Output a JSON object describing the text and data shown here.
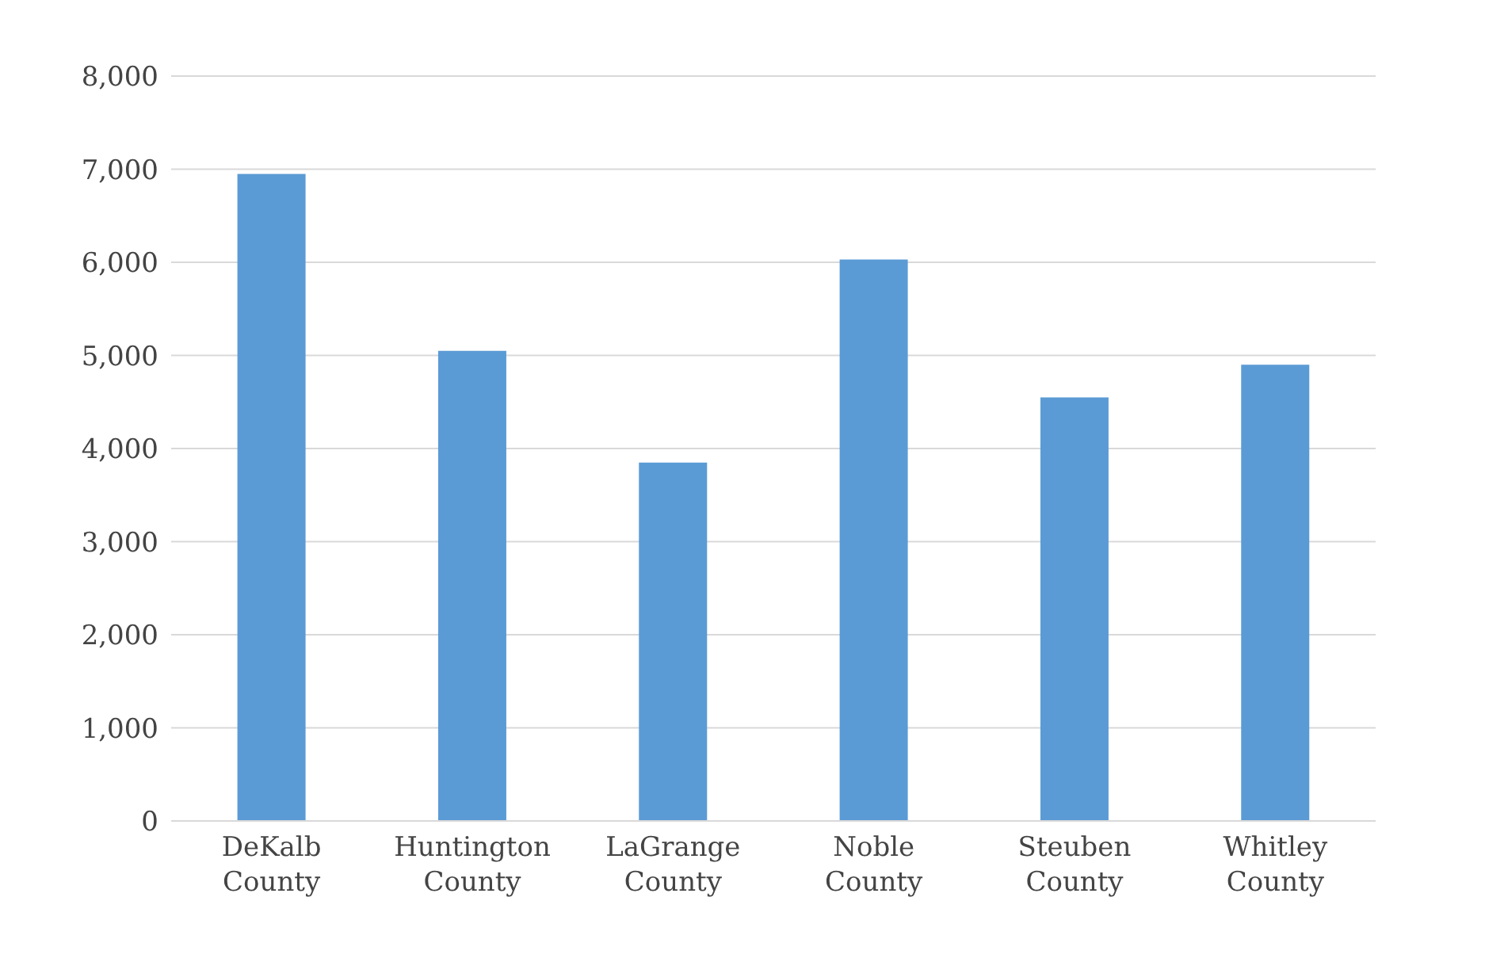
{
  "chart_data": {
    "type": "bar",
    "categories": [
      "DeKalb County",
      "Huntington County",
      "LaGrange County",
      "Noble County",
      "Steuben County",
      "Whitley County"
    ],
    "values": [
      6950,
      5050,
      3850,
      6030,
      4550,
      4900
    ],
    "color": "#5b9bd5",
    "ylim": [
      0,
      8000
    ],
    "yticks": [
      {
        "value": 0,
        "label": "0"
      },
      {
        "value": 1000,
        "label": "1,000"
      },
      {
        "value": 2000,
        "label": "2,000"
      },
      {
        "value": 3000,
        "label": "3,000"
      },
      {
        "value": 4000,
        "label": "4,000"
      },
      {
        "value": 5000,
        "label": "5,000"
      },
      {
        "value": 6000,
        "label": "6,000"
      },
      {
        "value": 7000,
        "label": "7,000"
      },
      {
        "value": 8000,
        "label": "8,000"
      }
    ],
    "grid": "y"
  }
}
